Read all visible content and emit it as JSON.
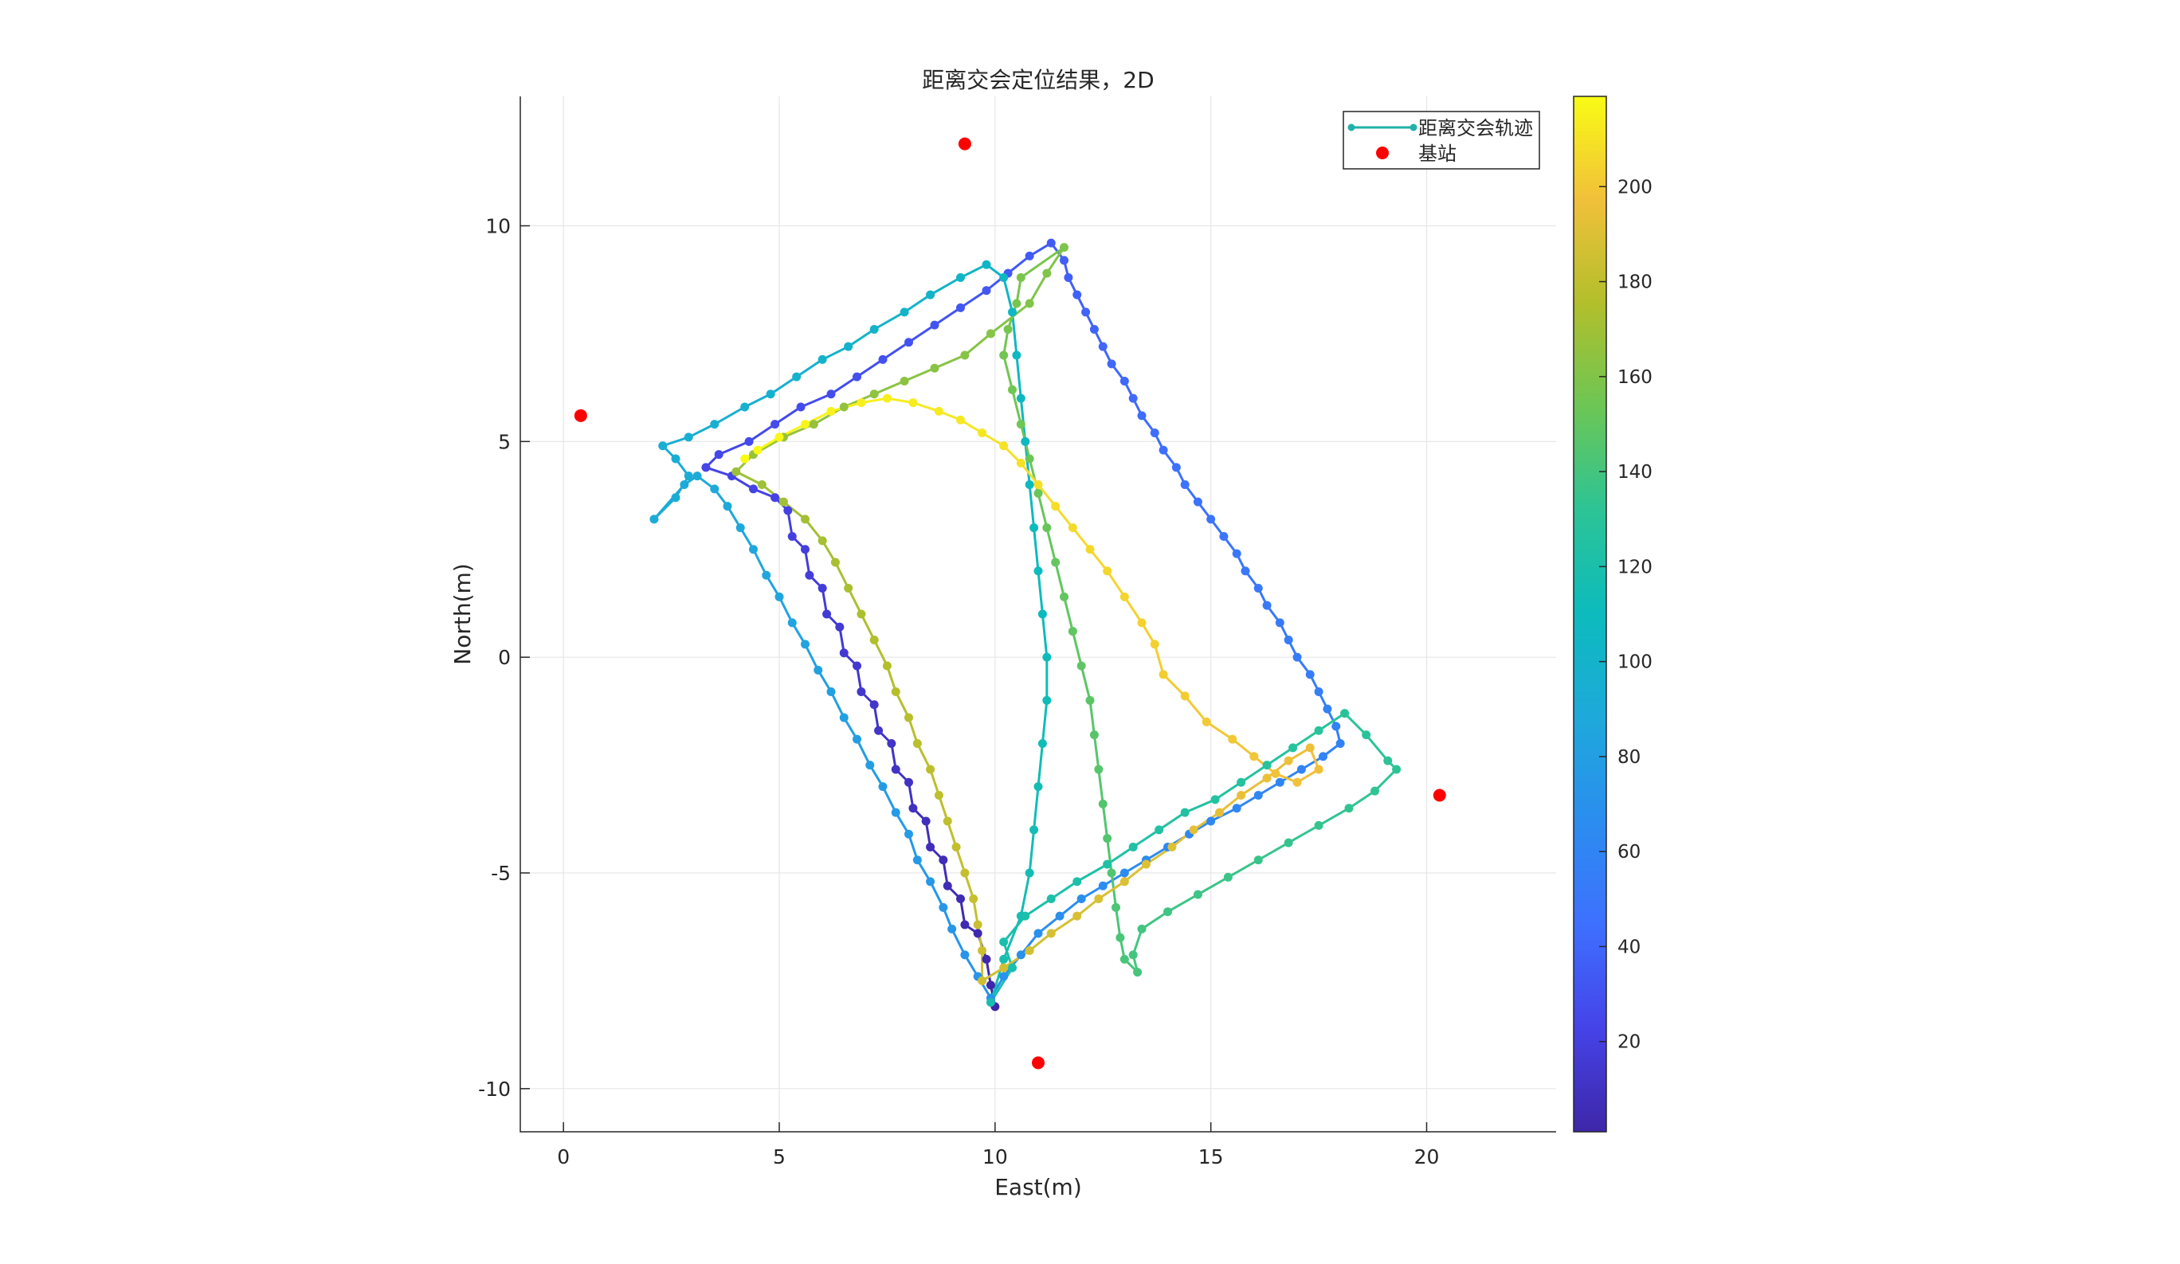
{
  "chart_data": {
    "type": "scatter",
    "title": "距离交会定位结果，2D",
    "xlabel": "East(m)",
    "ylabel": "North(m)",
    "xlim": [
      -1,
      23
    ],
    "ylim": [
      -11,
      13
    ],
    "xticks": [
      0,
      5,
      10,
      15,
      20
    ],
    "yticks": [
      -10,
      -5,
      0,
      5,
      10
    ],
    "grid": true,
    "legend": {
      "location": "top-right",
      "entries": [
        "距离交会轨迹",
        "基站"
      ]
    },
    "colorbar": {
      "colormap": "parula",
      "range": [
        1,
        219
      ],
      "ticks": [
        20,
        40,
        60,
        80,
        100,
        120,
        140,
        160,
        180,
        200
      ]
    },
    "series": [
      {
        "name": "基站",
        "style": "marker",
        "color": "#ff0000",
        "points": [
          [
            0.4,
            5.6
          ],
          [
            9.3,
            11.9
          ],
          [
            20.3,
            -3.2
          ],
          [
            11.0,
            -9.4
          ]
        ]
      },
      {
        "name": "距离交会轨迹",
        "style": "line-marker",
        "color_by": "index",
        "points": [
          [
            10.0,
            -8.1
          ],
          [
            9.9,
            -7.6
          ],
          [
            9.8,
            -7.0
          ],
          [
            9.6,
            -6.4
          ],
          [
            9.3,
            -6.2
          ],
          [
            9.2,
            -5.6
          ],
          [
            8.9,
            -5.3
          ],
          [
            8.8,
            -4.7
          ],
          [
            8.5,
            -4.4
          ],
          [
            8.4,
            -3.8
          ],
          [
            8.1,
            -3.5
          ],
          [
            8.0,
            -2.9
          ],
          [
            7.7,
            -2.6
          ],
          [
            7.6,
            -2.0
          ],
          [
            7.3,
            -1.7
          ],
          [
            7.2,
            -1.1
          ],
          [
            6.9,
            -0.8
          ],
          [
            6.8,
            -0.2
          ],
          [
            6.5,
            0.1
          ],
          [
            6.4,
            0.7
          ],
          [
            6.1,
            1.0
          ],
          [
            6.0,
            1.6
          ],
          [
            5.7,
            1.9
          ],
          [
            5.6,
            2.5
          ],
          [
            5.3,
            2.8
          ],
          [
            5.2,
            3.4
          ],
          [
            4.9,
            3.7
          ],
          [
            4.4,
            3.9
          ],
          [
            3.9,
            4.2
          ],
          [
            3.3,
            4.4
          ],
          [
            3.6,
            4.7
          ],
          [
            4.3,
            5.0
          ],
          [
            4.9,
            5.4
          ],
          [
            5.5,
            5.8
          ],
          [
            6.2,
            6.1
          ],
          [
            6.8,
            6.5
          ],
          [
            7.4,
            6.9
          ],
          [
            8.0,
            7.3
          ],
          [
            8.6,
            7.7
          ],
          [
            9.2,
            8.1
          ],
          [
            9.8,
            8.5
          ],
          [
            10.3,
            8.9
          ],
          [
            10.8,
            9.3
          ],
          [
            11.3,
            9.6
          ],
          [
            11.6,
            9.2
          ],
          [
            11.7,
            8.8
          ],
          [
            11.9,
            8.4
          ],
          [
            12.1,
            8.0
          ],
          [
            12.3,
            7.6
          ],
          [
            12.5,
            7.2
          ],
          [
            12.7,
            6.8
          ],
          [
            13.0,
            6.4
          ],
          [
            13.2,
            6.0
          ],
          [
            13.4,
            5.6
          ],
          [
            13.7,
            5.2
          ],
          [
            13.9,
            4.8
          ],
          [
            14.2,
            4.4
          ],
          [
            14.4,
            4.0
          ],
          [
            14.7,
            3.6
          ],
          [
            15.0,
            3.2
          ],
          [
            15.3,
            2.8
          ],
          [
            15.6,
            2.4
          ],
          [
            15.8,
            2.0
          ],
          [
            16.1,
            1.6
          ],
          [
            16.3,
            1.2
          ],
          [
            16.6,
            0.8
          ],
          [
            16.8,
            0.4
          ],
          [
            17.0,
            0.0
          ],
          [
            17.3,
            -0.4
          ],
          [
            17.5,
            -0.8
          ],
          [
            17.7,
            -1.2
          ],
          [
            17.9,
            -1.6
          ],
          [
            18.0,
            -2.0
          ],
          [
            17.6,
            -2.3
          ],
          [
            17.1,
            -2.6
          ],
          [
            16.6,
            -2.9
          ],
          [
            16.1,
            -3.2
          ],
          [
            15.6,
            -3.5
          ],
          [
            15.0,
            -3.8
          ],
          [
            14.5,
            -4.1
          ],
          [
            14.0,
            -4.4
          ],
          [
            13.5,
            -4.7
          ],
          [
            13.0,
            -5.0
          ],
          [
            12.5,
            -5.3
          ],
          [
            12.0,
            -5.6
          ],
          [
            11.5,
            -6.0
          ],
          [
            11.0,
            -6.4
          ],
          [
            10.6,
            -6.9
          ],
          [
            10.2,
            -7.4
          ],
          [
            9.9,
            -7.9
          ],
          [
            9.6,
            -7.4
          ],
          [
            9.3,
            -6.9
          ],
          [
            9.0,
            -6.3
          ],
          [
            8.8,
            -5.8
          ],
          [
            8.5,
            -5.2
          ],
          [
            8.2,
            -4.7
          ],
          [
            8.0,
            -4.1
          ],
          [
            7.7,
            -3.6
          ],
          [
            7.4,
            -3.0
          ],
          [
            7.1,
            -2.5
          ],
          [
            6.8,
            -1.9
          ],
          [
            6.5,
            -1.4
          ],
          [
            6.2,
            -0.8
          ],
          [
            5.9,
            -0.3
          ],
          [
            5.6,
            0.3
          ],
          [
            5.3,
            0.8
          ],
          [
            5.0,
            1.4
          ],
          [
            4.7,
            1.9
          ],
          [
            4.4,
            2.5
          ],
          [
            4.1,
            3.0
          ],
          [
            3.8,
            3.5
          ],
          [
            3.5,
            3.9
          ],
          [
            3.1,
            4.2
          ],
          [
            2.8,
            4.0
          ],
          [
            2.1,
            3.2
          ],
          [
            2.6,
            3.7
          ],
          [
            2.9,
            4.2
          ],
          [
            2.6,
            4.6
          ],
          [
            2.3,
            4.9
          ],
          [
            2.9,
            5.1
          ],
          [
            3.5,
            5.4
          ],
          [
            4.2,
            5.8
          ],
          [
            4.8,
            6.1
          ],
          [
            5.4,
            6.5
          ],
          [
            6.0,
            6.9
          ],
          [
            6.6,
            7.2
          ],
          [
            7.2,
            7.6
          ],
          [
            7.9,
            8.0
          ],
          [
            8.5,
            8.4
          ],
          [
            9.2,
            8.8
          ],
          [
            9.8,
            9.1
          ],
          [
            10.2,
            8.8
          ],
          [
            10.4,
            8.0
          ],
          [
            10.5,
            7.0
          ],
          [
            10.6,
            6.0
          ],
          [
            10.7,
            5.0
          ],
          [
            10.8,
            4.0
          ],
          [
            10.9,
            3.0
          ],
          [
            11.0,
            2.0
          ],
          [
            11.1,
            1.0
          ],
          [
            11.2,
            0.0
          ],
          [
            11.2,
            -1.0
          ],
          [
            11.1,
            -2.0
          ],
          [
            11.0,
            -3.0
          ],
          [
            10.9,
            -4.0
          ],
          [
            10.8,
            -5.0
          ],
          [
            10.6,
            -6.0
          ],
          [
            10.2,
            -7.0
          ],
          [
            9.9,
            -8.0
          ],
          [
            10.4,
            -7.2
          ],
          [
            10.2,
            -6.6
          ],
          [
            10.7,
            -6.0
          ],
          [
            11.3,
            -5.6
          ],
          [
            11.9,
            -5.2
          ],
          [
            12.6,
            -4.8
          ],
          [
            13.2,
            -4.4
          ],
          [
            13.8,
            -4.0
          ],
          [
            14.4,
            -3.6
          ],
          [
            15.1,
            -3.3
          ],
          [
            15.7,
            -2.9
          ],
          [
            16.3,
            -2.5
          ],
          [
            16.9,
            -2.1
          ],
          [
            17.5,
            -1.7
          ],
          [
            18.1,
            -1.3
          ],
          [
            18.6,
            -1.8
          ],
          [
            19.1,
            -2.4
          ],
          [
            19.3,
            -2.6
          ],
          [
            18.8,
            -3.1
          ],
          [
            18.2,
            -3.5
          ],
          [
            17.5,
            -3.9
          ],
          [
            16.8,
            -4.3
          ],
          [
            16.1,
            -4.7
          ],
          [
            15.4,
            -5.1
          ],
          [
            14.7,
            -5.5
          ],
          [
            14.0,
            -5.9
          ],
          [
            13.4,
            -6.3
          ],
          [
            13.2,
            -6.9
          ],
          [
            13.3,
            -7.3
          ],
          [
            13.0,
            -7.0
          ],
          [
            12.9,
            -6.5
          ],
          [
            12.8,
            -5.8
          ],
          [
            12.7,
            -5.0
          ],
          [
            12.6,
            -4.2
          ],
          [
            12.5,
            -3.4
          ],
          [
            12.4,
            -2.6
          ],
          [
            12.3,
            -1.8
          ],
          [
            12.2,
            -1.0
          ],
          [
            12.0,
            -0.2
          ],
          [
            11.8,
            0.6
          ],
          [
            11.6,
            1.4
          ],
          [
            11.4,
            2.2
          ],
          [
            11.2,
            3.0
          ],
          [
            11.0,
            3.8
          ],
          [
            10.8,
            4.6
          ],
          [
            10.6,
            5.4
          ],
          [
            10.4,
            6.2
          ],
          [
            10.2,
            7.0
          ],
          [
            10.3,
            7.6
          ],
          [
            10.5,
            8.2
          ],
          [
            10.6,
            8.8
          ],
          [
            11.6,
            9.5
          ],
          [
            11.2,
            8.9
          ],
          [
            10.8,
            8.2
          ],
          [
            9.9,
            7.5
          ],
          [
            9.3,
            7.0
          ],
          [
            8.6,
            6.7
          ],
          [
            7.9,
            6.4
          ],
          [
            7.2,
            6.1
          ],
          [
            6.5,
            5.8
          ],
          [
            5.8,
            5.4
          ],
          [
            5.1,
            5.1
          ],
          [
            4.4,
            4.7
          ],
          [
            4.0,
            4.3
          ],
          [
            4.6,
            4.0
          ],
          [
            5.1,
            3.6
          ],
          [
            5.6,
            3.2
          ],
          [
            6.0,
            2.7
          ],
          [
            6.3,
            2.2
          ],
          [
            6.6,
            1.6
          ],
          [
            6.9,
            1.0
          ],
          [
            7.2,
            0.4
          ],
          [
            7.5,
            -0.2
          ],
          [
            7.7,
            -0.8
          ],
          [
            8.0,
            -1.4
          ],
          [
            8.2,
            -2.0
          ],
          [
            8.5,
            -2.6
          ],
          [
            8.7,
            -3.2
          ],
          [
            8.9,
            -3.8
          ],
          [
            9.1,
            -4.4
          ],
          [
            9.3,
            -5.0
          ],
          [
            9.5,
            -5.6
          ],
          [
            9.6,
            -6.2
          ],
          [
            9.7,
            -6.8
          ],
          [
            9.7,
            -7.5
          ],
          [
            10.2,
            -7.2
          ],
          [
            10.8,
            -6.8
          ],
          [
            11.3,
            -6.4
          ],
          [
            11.9,
            -6.0
          ],
          [
            12.4,
            -5.6
          ],
          [
            13.0,
            -5.2
          ],
          [
            13.5,
            -4.8
          ],
          [
            14.1,
            -4.4
          ],
          [
            14.6,
            -4.0
          ],
          [
            15.2,
            -3.6
          ],
          [
            15.7,
            -3.2
          ],
          [
            16.3,
            -2.8
          ],
          [
            16.8,
            -2.4
          ],
          [
            17.3,
            -2.1
          ],
          [
            17.5,
            -2.6
          ],
          [
            17.0,
            -2.9
          ],
          [
            16.5,
            -2.7
          ],
          [
            16.0,
            -2.3
          ],
          [
            15.5,
            -1.9
          ],
          [
            14.9,
            -1.5
          ],
          [
            14.4,
            -0.9
          ],
          [
            13.9,
            -0.4
          ],
          [
            13.7,
            0.3
          ],
          [
            13.4,
            0.8
          ],
          [
            13.0,
            1.4
          ],
          [
            12.6,
            2.0
          ],
          [
            12.2,
            2.5
          ],
          [
            11.8,
            3.0
          ],
          [
            11.4,
            3.5
          ],
          [
            11.0,
            4.0
          ],
          [
            10.6,
            4.5
          ],
          [
            10.2,
            4.9
          ],
          [
            9.7,
            5.2
          ],
          [
            9.2,
            5.5
          ],
          [
            8.7,
            5.7
          ],
          [
            8.1,
            5.9
          ],
          [
            7.5,
            6.0
          ],
          [
            6.9,
            5.9
          ],
          [
            6.2,
            5.7
          ],
          [
            5.6,
            5.4
          ],
          [
            5.0,
            5.1
          ],
          [
            4.5,
            4.8
          ],
          [
            4.2,
            4.6
          ]
        ]
      }
    ]
  }
}
